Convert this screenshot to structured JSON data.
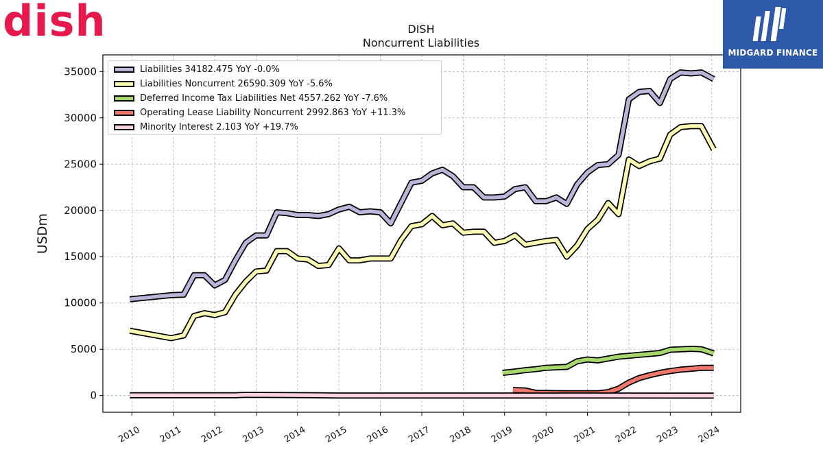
{
  "logos": {
    "company": "dish",
    "watermark": "MIDGARD FINANCE"
  },
  "chart_data": {
    "type": "line",
    "title": "DISH",
    "subtitle": "Noncurrent  Liabilities",
    "xlabel": "",
    "ylabel": "USDm",
    "xlim": [
      2009.3,
      2024.7
    ],
    "ylim": [
      -1800,
      36800
    ],
    "x_ticks": [
      "2010",
      "2011",
      "2012",
      "2013",
      "2014",
      "2015",
      "2016",
      "2017",
      "2018",
      "2019",
      "2020",
      "2021",
      "2022",
      "2023",
      "2024"
    ],
    "y_ticks": [
      0,
      5000,
      10000,
      15000,
      20000,
      25000,
      30000,
      35000
    ],
    "y_tick_labels": [
      "0",
      "5000",
      "10000",
      "15000",
      "20000",
      "25000",
      "30000",
      "35000"
    ],
    "grid": true,
    "legend_position": "top-left",
    "series": [
      {
        "name": "Liabilities",
        "legend": "Liabilities  34182.475 YoY -0.0%",
        "color": "#b9b6d9",
        "points": [
          [
            2009.95,
            10400
          ],
          [
            2010.95,
            10850
          ],
          [
            2011.25,
            10900
          ],
          [
            2011.5,
            13000
          ],
          [
            2011.75,
            13000
          ],
          [
            2012.0,
            11900
          ],
          [
            2012.25,
            12500
          ],
          [
            2012.5,
            14600
          ],
          [
            2012.75,
            16500
          ],
          [
            2013.0,
            17300
          ],
          [
            2013.25,
            17300
          ],
          [
            2013.5,
            19800
          ],
          [
            2013.75,
            19700
          ],
          [
            2014.0,
            19500
          ],
          [
            2014.25,
            19500
          ],
          [
            2014.5,
            19400
          ],
          [
            2014.75,
            19600
          ],
          [
            2015.0,
            20100
          ],
          [
            2015.25,
            20400
          ],
          [
            2015.5,
            19800
          ],
          [
            2015.75,
            19900
          ],
          [
            2016.0,
            19800
          ],
          [
            2016.25,
            18600
          ],
          [
            2016.5,
            20800
          ],
          [
            2016.75,
            23000
          ],
          [
            2017.0,
            23200
          ],
          [
            2017.25,
            24000
          ],
          [
            2017.5,
            24400
          ],
          [
            2017.75,
            23700
          ],
          [
            2018.0,
            22500
          ],
          [
            2018.25,
            22500
          ],
          [
            2018.5,
            21400
          ],
          [
            2018.75,
            21400
          ],
          [
            2019.0,
            21500
          ],
          [
            2019.25,
            22300
          ],
          [
            2019.5,
            22500
          ],
          [
            2019.75,
            21000
          ],
          [
            2020.0,
            21000
          ],
          [
            2020.25,
            21400
          ],
          [
            2020.5,
            20700
          ],
          [
            2020.75,
            22800
          ],
          [
            2021.0,
            24100
          ],
          [
            2021.25,
            24900
          ],
          [
            2021.5,
            25000
          ],
          [
            2021.75,
            26000
          ],
          [
            2022.0,
            32000
          ],
          [
            2022.25,
            32800
          ],
          [
            2022.5,
            32900
          ],
          [
            2022.75,
            31600
          ],
          [
            2023.0,
            34200
          ],
          [
            2023.25,
            34900
          ],
          [
            2023.5,
            34800
          ],
          [
            2023.75,
            34900
          ],
          [
            2024.05,
            34182
          ]
        ]
      },
      {
        "name": "Liabilities Noncurrent",
        "legend": "Liabilities Noncurrent  26590.309 YoY -5.6%",
        "color": "#fbfbb4",
        "points": [
          [
            2009.95,
            7000
          ],
          [
            2010.95,
            6200
          ],
          [
            2011.25,
            6500
          ],
          [
            2011.5,
            8600
          ],
          [
            2011.75,
            8900
          ],
          [
            2012.0,
            8700
          ],
          [
            2012.25,
            9000
          ],
          [
            2012.5,
            10900
          ],
          [
            2012.75,
            12300
          ],
          [
            2013.0,
            13400
          ],
          [
            2013.25,
            13500
          ],
          [
            2013.5,
            15600
          ],
          [
            2013.75,
            15600
          ],
          [
            2014.0,
            14800
          ],
          [
            2014.25,
            14700
          ],
          [
            2014.5,
            14000
          ],
          [
            2014.75,
            14100
          ],
          [
            2015.0,
            15900
          ],
          [
            2015.25,
            14600
          ],
          [
            2015.5,
            14600
          ],
          [
            2015.75,
            14800
          ],
          [
            2016.0,
            14800
          ],
          [
            2016.25,
            14800
          ],
          [
            2016.5,
            16800
          ],
          [
            2016.75,
            18300
          ],
          [
            2017.0,
            18500
          ],
          [
            2017.25,
            19400
          ],
          [
            2017.5,
            18400
          ],
          [
            2017.75,
            18600
          ],
          [
            2018.0,
            17600
          ],
          [
            2018.25,
            17700
          ],
          [
            2018.5,
            17700
          ],
          [
            2018.75,
            16500
          ],
          [
            2019.0,
            16700
          ],
          [
            2019.25,
            17300
          ],
          [
            2019.5,
            16300
          ],
          [
            2019.75,
            16500
          ],
          [
            2020.0,
            16700
          ],
          [
            2020.25,
            16800
          ],
          [
            2020.5,
            15000
          ],
          [
            2020.75,
            16200
          ],
          [
            2021.0,
            18000
          ],
          [
            2021.25,
            19000
          ],
          [
            2021.5,
            20800
          ],
          [
            2021.75,
            19600
          ],
          [
            2022.0,
            25500
          ],
          [
            2022.25,
            24800
          ],
          [
            2022.5,
            25300
          ],
          [
            2022.75,
            25600
          ],
          [
            2023.0,
            28200
          ],
          [
            2023.25,
            29000
          ],
          [
            2023.5,
            29100
          ],
          [
            2023.75,
            29100
          ],
          [
            2024.05,
            26590
          ]
        ]
      },
      {
        "name": "Deferred Income Tax Liabilities Net",
        "legend": "Deferred Income Tax Liabilities Net  4557.262 YoY -7.6%",
        "color": "#a6d86e",
        "points": [
          [
            2018.95,
            2450
          ],
          [
            2019.25,
            2600
          ],
          [
            2019.5,
            2750
          ],
          [
            2019.75,
            2850
          ],
          [
            2020.0,
            3000
          ],
          [
            2020.25,
            3050
          ],
          [
            2020.5,
            3100
          ],
          [
            2020.75,
            3700
          ],
          [
            2021.0,
            3900
          ],
          [
            2021.25,
            3800
          ],
          [
            2021.5,
            4000
          ],
          [
            2021.75,
            4200
          ],
          [
            2022.0,
            4300
          ],
          [
            2022.25,
            4400
          ],
          [
            2022.5,
            4500
          ],
          [
            2022.75,
            4600
          ],
          [
            2023.0,
            4950
          ],
          [
            2023.25,
            5000
          ],
          [
            2023.5,
            5050
          ],
          [
            2023.75,
            5000
          ],
          [
            2024.05,
            4557
          ]
        ]
      },
      {
        "name": "Operating Lease Liability Noncurrent",
        "legend": "Operating Lease Liability Noncurrent  2992.863 YoY +11.3%",
        "color": "#f0776c",
        "points": [
          [
            2019.2,
            600
          ],
          [
            2019.5,
            550
          ],
          [
            2019.75,
            300
          ],
          [
            2020.0,
            280
          ],
          [
            2020.25,
            270
          ],
          [
            2020.5,
            260
          ],
          [
            2020.75,
            250
          ],
          [
            2021.0,
            250
          ],
          [
            2021.25,
            250
          ],
          [
            2021.5,
            380
          ],
          [
            2021.75,
            750
          ],
          [
            2022.0,
            1400
          ],
          [
            2022.25,
            1900
          ],
          [
            2022.5,
            2200
          ],
          [
            2022.75,
            2450
          ],
          [
            2023.0,
            2650
          ],
          [
            2023.25,
            2800
          ],
          [
            2023.5,
            2900
          ],
          [
            2023.75,
            3000
          ],
          [
            2024.05,
            2993
          ]
        ]
      },
      {
        "name": "Minority Interest",
        "legend": "Minority Interest  2.103 YoY +19.7%",
        "color": "#f9d1e0",
        "points": [
          [
            2009.95,
            30
          ],
          [
            2012.5,
            30
          ],
          [
            2012.75,
            80
          ],
          [
            2013.5,
            60
          ],
          [
            2014.5,
            40
          ],
          [
            2015.0,
            10
          ],
          [
            2024.05,
            2
          ]
        ]
      }
    ]
  }
}
